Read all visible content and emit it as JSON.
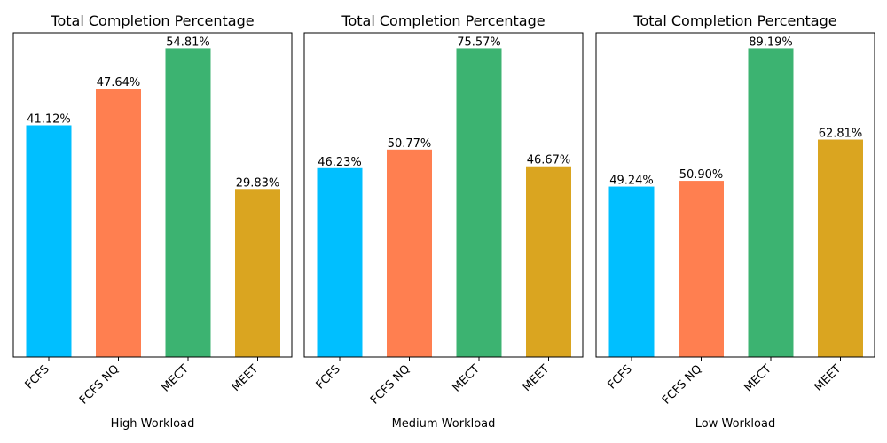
{
  "chart_data": [
    {
      "type": "bar",
      "title": "Total Completion Percentage",
      "xlabel": "High Workload",
      "ylabel": "",
      "ylim": [
        0,
        57.55
      ],
      "categories": [
        "FCFS",
        "FCFS NQ",
        "MECT",
        "MEET"
      ],
      "values": [
        41.12,
        47.64,
        54.81,
        29.83
      ],
      "value_labels": [
        "41.12%",
        "47.64%",
        "54.81%",
        "29.83%"
      ],
      "colors": [
        "#00bfff",
        "#ff7f50",
        "#3cb371",
        "#daa520"
      ]
    },
    {
      "type": "bar",
      "title": "Total Completion Percentage",
      "xlabel": "Medium Workload",
      "ylabel": "",
      "ylim": [
        0,
        79.35
      ],
      "categories": [
        "FCFS",
        "FCFS NQ",
        "MECT",
        "MEET"
      ],
      "values": [
        46.23,
        50.77,
        75.57,
        46.67
      ],
      "value_labels": [
        "46.23%",
        "50.77%",
        "75.57%",
        "46.67%"
      ],
      "colors": [
        "#00bfff",
        "#ff7f50",
        "#3cb371",
        "#daa520"
      ]
    },
    {
      "type": "bar",
      "title": "Total Completion Percentage",
      "xlabel": "Low Workload",
      "ylabel": "",
      "ylim": [
        0,
        93.65
      ],
      "categories": [
        "FCFS",
        "FCFS NQ",
        "MECT",
        "MEET"
      ],
      "values": [
        49.24,
        50.9,
        89.19,
        62.81
      ],
      "value_labels": [
        "49.24%",
        "50.90%",
        "89.19%",
        "62.81%"
      ],
      "colors": [
        "#00bfff",
        "#ff7f50",
        "#3cb371",
        "#daa520"
      ]
    }
  ]
}
